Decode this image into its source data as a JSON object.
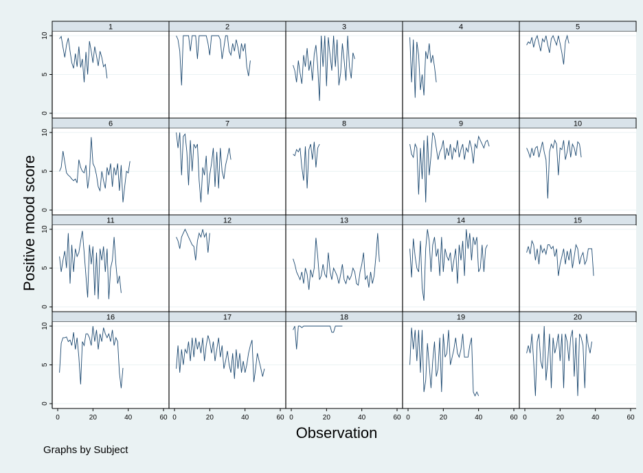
{
  "chart_data": {
    "type": "line",
    "layout": "small-multiples",
    "facet_rows": 4,
    "facet_cols": 5,
    "xlabel": "Observation",
    "ylabel": "Positive mood score",
    "note": "Graphs by Subject",
    "xlim": [
      0,
      60
    ],
    "ylim": [
      0,
      10
    ],
    "x_ticks": [
      "0",
      "20",
      "40",
      "60"
    ],
    "y_ticks": [
      "0",
      "5",
      "10"
    ],
    "gridlines": "horizontal",
    "line_color": "#1a476f",
    "panels": [
      {
        "label": "1",
        "values": [
          9.6,
          9.9,
          8.5,
          7.2,
          8.8,
          9.7,
          8.0,
          6.5,
          5.8,
          7.7,
          6.0,
          8.6,
          5.9,
          7.0,
          4.0,
          7.9,
          5.0,
          9.3,
          8.0,
          6.5,
          8.6,
          7.4,
          6.1,
          8.0,
          7.2,
          6.0,
          6.3,
          4.5
        ]
      },
      {
        "label": "2",
        "values": [
          10.0,
          9.5,
          8.0,
          3.6,
          10.0,
          10.0,
          10.0,
          10.0,
          8.0,
          10.0,
          10.0,
          10.0,
          7.0,
          10.0,
          10.0,
          10.0,
          10.0,
          10.0,
          9.0,
          7.5,
          10.0,
          10.0,
          10.0,
          10.0,
          10.0,
          9.5,
          7.0,
          8.5,
          10.0,
          10.0,
          8.0,
          7.5,
          9.0,
          8.0,
          9.5,
          8.5,
          7.0,
          9.0,
          8.0,
          9.0,
          6.0,
          4.8,
          6.8
        ]
      },
      {
        "label": "3",
        "values": [
          6.2,
          5.5,
          4.0,
          6.8,
          5.2,
          3.8,
          7.5,
          6.0,
          8.4,
          5.5,
          6.8,
          4.2,
          7.6,
          8.8,
          6.0,
          1.6,
          10.0,
          6.0,
          10.0,
          3.5,
          9.8,
          7.5,
          5.5,
          10.0,
          6.0,
          9.5,
          3.6,
          5.2,
          9.0,
          6.8,
          4.2,
          10.0,
          6.0,
          4.5,
          7.8,
          7.0
        ]
      },
      {
        "label": "4",
        "values": [
          9.8,
          4.0,
          9.5,
          2.0,
          9.2,
          7.5,
          3.0,
          5.0,
          2.3,
          8.0,
          7.0,
          9.0,
          6.5,
          7.5,
          6.0,
          4.0
        ]
      },
      {
        "label": "5",
        "values": [
          8.8,
          9.2,
          9.0,
          9.8,
          8.5,
          9.5,
          10.0,
          9.0,
          8.0,
          9.6,
          9.2,
          10.0,
          8.8,
          7.8,
          9.6,
          10.0,
          9.4,
          8.8,
          10.0,
          9.0,
          7.8,
          6.3,
          9.2,
          10.0,
          9.0
        ]
      },
      {
        "label": "6",
        "values": [
          5.0,
          5.5,
          7.6,
          6.2,
          4.8,
          4.5,
          4.3,
          4.0,
          3.8,
          4.0,
          3.5,
          6.5,
          5.5,
          5.0,
          4.8,
          5.8,
          2.8,
          4.5,
          9.4,
          6.0,
          5.5,
          4.5,
          3.0,
          2.5,
          5.0,
          3.8,
          2.8,
          5.5,
          4.5,
          6.0,
          3.0,
          5.5,
          4.5,
          6.0,
          2.5,
          5.8,
          1.0,
          3.0,
          5.0,
          4.8,
          6.3
        ]
      },
      {
        "label": "7",
        "values": [
          10.0,
          8.0,
          10.0,
          4.5,
          9.5,
          9.8,
          7.5,
          3.2,
          9.0,
          5.0,
          8.5,
          8.0,
          8.5,
          3.8,
          1.0,
          5.5,
          4.5,
          7.0,
          2.0,
          4.5,
          6.0,
          8.0,
          3.0,
          7.5,
          2.8,
          8.0,
          5.0,
          4.0,
          5.8,
          6.8,
          8.0,
          6.5
        ]
      },
      {
        "label": "8",
        "values": [
          7.2,
          7.0,
          7.8,
          7.5,
          8.0,
          5.5,
          3.8,
          8.2,
          2.8,
          7.8,
          8.5,
          6.5,
          8.8,
          5.5,
          8.0,
          8.5
        ]
      },
      {
        "label": "9",
        "values": [
          8.5,
          7.2,
          6.8,
          8.5,
          8.0,
          2.0,
          8.0,
          4.0,
          9.0,
          1.0,
          9.6,
          4.5,
          7.0,
          10.0,
          9.5,
          8.0,
          6.5,
          7.5,
          8.0,
          9.0,
          6.5,
          8.0,
          7.0,
          8.5,
          6.5,
          8.0,
          7.5,
          9.0,
          6.8,
          7.8,
          8.5,
          6.5,
          8.0,
          7.5,
          9.0,
          8.0,
          6.0,
          8.5,
          8.0,
          9.5,
          9.0,
          8.5,
          8.0,
          8.8,
          9.0,
          8.2
        ]
      },
      {
        "label": "10",
        "values": [
          8.0,
          7.5,
          6.8,
          8.0,
          7.0,
          8.0,
          8.2,
          6.8,
          7.8,
          8.8,
          7.5,
          6.5,
          1.5,
          7.5,
          8.5,
          8.0,
          9.0,
          8.5,
          4.5,
          8.0,
          7.8,
          9.0,
          6.5,
          7.5,
          9.0,
          6.8,
          8.5,
          8.0,
          7.0,
          8.8,
          8.5,
          6.8
        ]
      },
      {
        "label": "11",
        "values": [
          6.5,
          4.5,
          6.0,
          7.2,
          5.0,
          9.5,
          3.0,
          8.0,
          4.5,
          7.5,
          6.5,
          7.0,
          8.5,
          9.8,
          7.0,
          4.0,
          1.2,
          8.0,
          5.5,
          7.8,
          1.5,
          7.0,
          1.0,
          7.5,
          6.0,
          7.8,
          4.5,
          7.5,
          1.0,
          5.0,
          6.0,
          9.0,
          5.5,
          3.0,
          4.0,
          1.8
        ]
      },
      {
        "label": "12",
        "values": [
          9.0,
          8.5,
          7.5,
          9.0,
          9.5,
          10.0,
          9.5,
          9.0,
          8.5,
          8.0,
          7.8,
          6.0,
          8.5,
          9.5,
          9.0,
          10.0,
          9.0,
          9.5,
          7.0,
          9.5
        ]
      },
      {
        "label": "13",
        "values": [
          6.2,
          5.5,
          4.5,
          4.0,
          3.5,
          4.5,
          3.0,
          5.0,
          4.2,
          2.2,
          4.8,
          3.8,
          5.0,
          8.9,
          6.5,
          3.5,
          4.0,
          5.5,
          4.2,
          3.8,
          7.0,
          4.5,
          3.5,
          5.0,
          4.5,
          4.0,
          3.0,
          4.2,
          5.5,
          3.5,
          3.0,
          4.0,
          3.5,
          4.0,
          5.0,
          4.5,
          3.0,
          2.8,
          4.5,
          5.5,
          7.0,
          3.5,
          4.0,
          2.5,
          4.5,
          3.0,
          4.0,
          6.5,
          9.5,
          5.8
        ]
      },
      {
        "label": "14",
        "values": [
          7.5,
          3.8,
          8.8,
          6.5,
          5.0,
          4.5,
          8.5,
          2.5,
          0.8,
          7.5,
          10.0,
          8.5,
          4.5,
          8.0,
          9.0,
          6.5,
          7.5,
          4.0,
          9.0,
          4.5,
          7.5,
          6.5,
          6.0,
          7.0,
          4.5,
          6.0,
          7.5,
          3.0,
          8.0,
          6.0,
          8.5,
          4.0,
          10.0,
          7.5,
          9.5,
          6.0,
          9.0,
          8.0,
          9.0,
          4.5,
          5.0,
          8.0,
          4.5,
          7.5,
          8.0
        ]
      },
      {
        "label": "15",
        "values": [
          7.0,
          7.8,
          6.8,
          8.5,
          8.0,
          6.0,
          7.5,
          5.5,
          8.0,
          7.0,
          7.5,
          6.8,
          8.0,
          8.0,
          7.5,
          7.8,
          6.5,
          7.5,
          4.0,
          5.5,
          6.5,
          7.5,
          5.5,
          7.2,
          6.0,
          7.5,
          5.0,
          6.5,
          8.0,
          7.5,
          5.5,
          6.5,
          7.0,
          5.5,
          6.0,
          7.5,
          7.5,
          7.5,
          4.0
        ]
      },
      {
        "label": "16",
        "values": [
          4.0,
          7.8,
          8.5,
          8.5,
          8.6,
          8.0,
          8.2,
          7.5,
          9.2,
          7.0,
          8.5,
          6.0,
          2.5,
          8.0,
          7.5,
          9.0,
          9.0,
          8.5,
          7.5,
          10.0,
          8.0,
          9.5,
          7.0,
          9.0,
          8.0,
          9.8,
          9.0,
          8.5,
          9.0,
          8.0,
          9.5,
          7.5,
          8.5,
          8.0,
          4.0,
          2.0,
          4.6
        ]
      },
      {
        "label": "17",
        "values": [
          4.5,
          7.5,
          4.0,
          7.0,
          5.0,
          7.0,
          6.5,
          8.0,
          5.5,
          8.5,
          6.0,
          8.5,
          7.0,
          8.0,
          6.5,
          8.5,
          5.5,
          7.5,
          8.8,
          8.0,
          6.5,
          8.0,
          5.5,
          7.0,
          8.5,
          6.0,
          7.5,
          4.5,
          5.5,
          6.8,
          5.0,
          4.0,
          6.5,
          3.2,
          7.0,
          4.5,
          6.5,
          4.0,
          5.5,
          4.0,
          5.0,
          6.5,
          7.5,
          8.2,
          2.8,
          4.5,
          6.5,
          5.5,
          4.5,
          3.5,
          4.5
        ]
      },
      {
        "label": "18",
        "values": [
          9.5,
          10.0,
          7.0,
          10.0,
          10.0,
          9.8,
          10.0,
          10.0,
          10.0,
          10.0,
          10.0,
          10.0,
          10.0,
          10.0,
          10.0,
          10.0,
          10.0,
          10.0,
          10.0,
          10.0,
          10.0,
          10.0,
          9.2,
          9.2,
          10.0,
          10.0,
          10.0,
          10.0,
          10.0
        ]
      },
      {
        "label": "19",
        "values": [
          5.0,
          9.8,
          7.0,
          9.5,
          5.5,
          9.5,
          4.0,
          9.5,
          1.5,
          3.0,
          7.8,
          5.0,
          2.0,
          5.5,
          8.0,
          3.5,
          4.5,
          8.5,
          1.5,
          9.0,
          6.0,
          6.5,
          9.5,
          5.0,
          6.0,
          7.0,
          8.5,
          6.5,
          6.0,
          7.0,
          9.0,
          6.0,
          6.0,
          6.0,
          7.5,
          8.5,
          1.5,
          1.0,
          1.5,
          1.0
        ]
      },
      {
        "label": "20",
        "values": [
          6.5,
          7.5,
          6.5,
          9.0,
          5.5,
          1.0,
          8.0,
          9.0,
          5.5,
          4.5,
          10.0,
          3.0,
          5.5,
          9.0,
          2.0,
          8.5,
          6.5,
          7.5,
          9.0,
          5.5,
          9.0,
          2.0,
          9.0,
          8.0,
          5.5,
          8.5,
          9.5,
          3.5,
          8.5,
          1.0,
          9.0,
          8.5,
          7.5,
          2.0,
          9.0,
          7.5,
          6.5,
          8.0
        ]
      }
    ]
  }
}
